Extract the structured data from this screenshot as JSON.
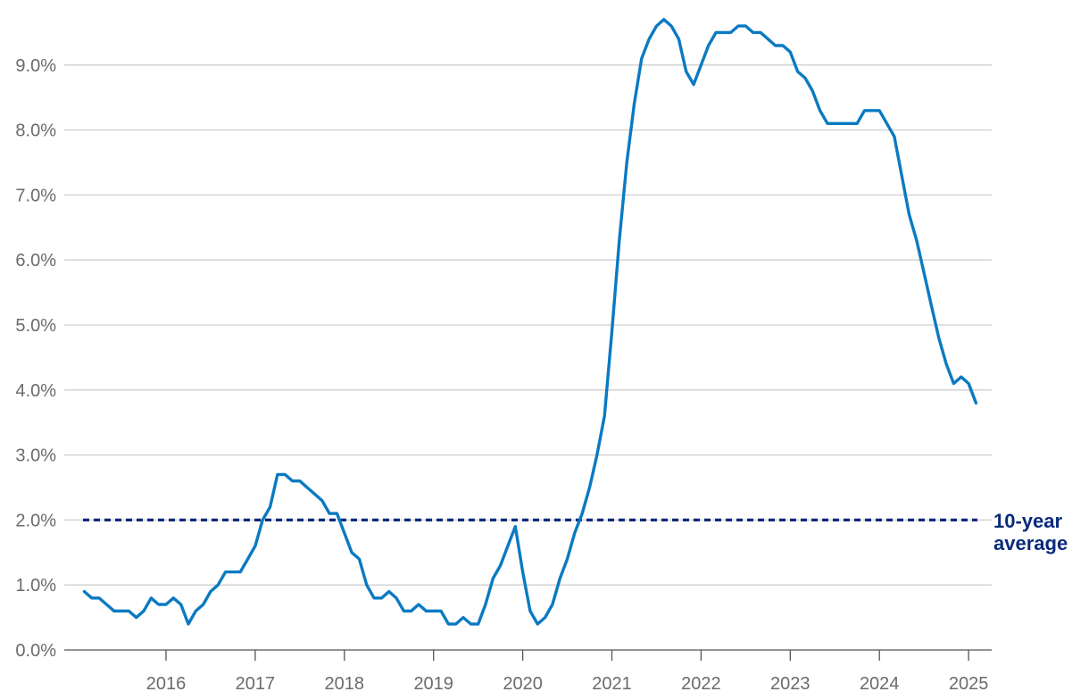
{
  "chart_data": {
    "type": "line",
    "title": "",
    "xlabel": "",
    "ylabel": "",
    "ylim": [
      0,
      9.8
    ],
    "grid": true,
    "y_ticks": [
      {
        "value": 0,
        "label": "0.0%"
      },
      {
        "value": 1,
        "label": "1.0%"
      },
      {
        "value": 2,
        "label": "2.0%"
      },
      {
        "value": 3,
        "label": "3.0%"
      },
      {
        "value": 4,
        "label": "4.0%"
      },
      {
        "value": 5,
        "label": "5.0%"
      },
      {
        "value": 6,
        "label": "6.0%"
      },
      {
        "value": 7,
        "label": "7.0%"
      },
      {
        "value": 8,
        "label": "8.0%"
      },
      {
        "value": 9,
        "label": "9.0%"
      }
    ],
    "x_ticks": [
      {
        "value": 2016,
        "label": "2016"
      },
      {
        "value": 2017,
        "label": "2017"
      },
      {
        "value": 2018,
        "label": "2018"
      },
      {
        "value": 2019,
        "label": "2019"
      },
      {
        "value": 2020,
        "label": "2020"
      },
      {
        "value": 2021,
        "label": "2021"
      },
      {
        "value": 2022,
        "label": "2022"
      },
      {
        "value": 2023,
        "label": "2023"
      },
      {
        "value": 2024,
        "label": "2024"
      },
      {
        "value": 2025,
        "label": "2025"
      }
    ],
    "series": [
      {
        "color": "#0a7ac2",
        "points": [
          [
            2015.083,
            0.9
          ],
          [
            2015.167,
            0.8
          ],
          [
            2015.25,
            0.8
          ],
          [
            2015.333,
            0.7
          ],
          [
            2015.417,
            0.6
          ],
          [
            2015.5,
            0.6
          ],
          [
            2015.583,
            0.6
          ],
          [
            2015.667,
            0.5
          ],
          [
            2015.75,
            0.6
          ],
          [
            2015.833,
            0.8
          ],
          [
            2015.917,
            0.7
          ],
          [
            2016.0,
            0.7
          ],
          [
            2016.083,
            0.8
          ],
          [
            2016.167,
            0.7
          ],
          [
            2016.25,
            0.4
          ],
          [
            2016.333,
            0.6
          ],
          [
            2016.417,
            0.7
          ],
          [
            2016.5,
            0.9
          ],
          [
            2016.583,
            1.0
          ],
          [
            2016.667,
            1.2
          ],
          [
            2016.75,
            1.2
          ],
          [
            2016.833,
            1.2
          ],
          [
            2016.917,
            1.4
          ],
          [
            2017.0,
            1.6
          ],
          [
            2017.083,
            2.0
          ],
          [
            2017.167,
            2.2
          ],
          [
            2017.25,
            2.7
          ],
          [
            2017.333,
            2.7
          ],
          [
            2017.417,
            2.6
          ],
          [
            2017.5,
            2.6
          ],
          [
            2017.583,
            2.5
          ],
          [
            2017.667,
            2.4
          ],
          [
            2017.75,
            2.3
          ],
          [
            2017.833,
            2.1
          ],
          [
            2017.917,
            2.1
          ],
          [
            2018.0,
            1.8
          ],
          [
            2018.083,
            1.5
          ],
          [
            2018.167,
            1.4
          ],
          [
            2018.25,
            1.0
          ],
          [
            2018.333,
            0.8
          ],
          [
            2018.417,
            0.8
          ],
          [
            2018.5,
            0.9
          ],
          [
            2018.583,
            0.8
          ],
          [
            2018.667,
            0.6
          ],
          [
            2018.75,
            0.6
          ],
          [
            2018.833,
            0.7
          ],
          [
            2018.917,
            0.6
          ],
          [
            2019.0,
            0.6
          ],
          [
            2019.083,
            0.6
          ],
          [
            2019.167,
            0.4
          ],
          [
            2019.25,
            0.4
          ],
          [
            2019.333,
            0.5
          ],
          [
            2019.417,
            0.4
          ],
          [
            2019.5,
            0.4
          ],
          [
            2019.583,
            0.7
          ],
          [
            2019.667,
            1.1
          ],
          [
            2019.75,
            1.3
          ],
          [
            2019.833,
            1.6
          ],
          [
            2019.917,
            1.9
          ],
          [
            2020.0,
            1.2
          ],
          [
            2020.083,
            0.6
          ],
          [
            2020.167,
            0.4
          ],
          [
            2020.25,
            0.5
          ],
          [
            2020.333,
            0.7
          ],
          [
            2020.417,
            1.1
          ],
          [
            2020.5,
            1.4
          ],
          [
            2020.583,
            1.8
          ],
          [
            2020.667,
            2.1
          ],
          [
            2020.75,
            2.5
          ],
          [
            2020.833,
            3.0
          ],
          [
            2020.917,
            3.6
          ],
          [
            2021.0,
            4.9
          ],
          [
            2021.083,
            6.3
          ],
          [
            2021.167,
            7.5
          ],
          [
            2021.25,
            8.4
          ],
          [
            2021.333,
            9.1
          ],
          [
            2021.417,
            9.4
          ],
          [
            2021.5,
            9.6
          ],
          [
            2021.583,
            9.7
          ],
          [
            2021.667,
            9.6
          ],
          [
            2021.75,
            9.4
          ],
          [
            2021.833,
            8.9
          ],
          [
            2021.917,
            8.7
          ],
          [
            2022.0,
            9.0
          ],
          [
            2022.083,
            9.3
          ],
          [
            2022.167,
            9.5
          ],
          [
            2022.25,
            9.5
          ],
          [
            2022.333,
            9.5
          ],
          [
            2022.417,
            9.6
          ],
          [
            2022.5,
            9.6
          ],
          [
            2022.583,
            9.5
          ],
          [
            2022.667,
            9.5
          ],
          [
            2022.75,
            9.4
          ],
          [
            2022.833,
            9.3
          ],
          [
            2022.917,
            9.3
          ],
          [
            2023.0,
            9.2
          ],
          [
            2023.083,
            8.9
          ],
          [
            2023.167,
            8.8
          ],
          [
            2023.25,
            8.6
          ],
          [
            2023.333,
            8.3
          ],
          [
            2023.417,
            8.1
          ],
          [
            2023.5,
            8.1
          ],
          [
            2023.583,
            8.1
          ],
          [
            2023.667,
            8.1
          ],
          [
            2023.75,
            8.1
          ],
          [
            2023.833,
            8.3
          ],
          [
            2023.917,
            8.3
          ],
          [
            2024.0,
            8.3
          ],
          [
            2024.083,
            8.1
          ],
          [
            2024.167,
            7.9
          ],
          [
            2024.25,
            7.3
          ],
          [
            2024.333,
            6.7
          ],
          [
            2024.417,
            6.3
          ],
          [
            2024.5,
            5.8
          ],
          [
            2024.583,
            5.3
          ],
          [
            2024.667,
            4.8
          ],
          [
            2024.75,
            4.4
          ],
          [
            2024.833,
            4.1
          ],
          [
            2024.917,
            4.2
          ],
          [
            2025.0,
            4.1
          ],
          [
            2025.083,
            3.8
          ]
        ]
      }
    ],
    "reference_line": {
      "value": 2.0,
      "style": "dashed",
      "color": "#0a2a7a",
      "label_lines": [
        "10-year",
        "average"
      ]
    }
  }
}
